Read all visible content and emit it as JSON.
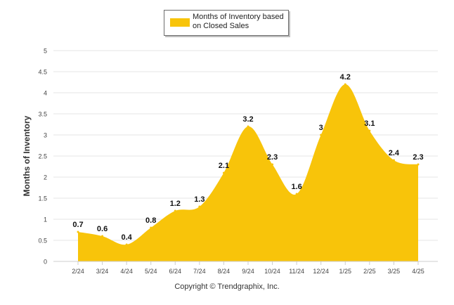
{
  "chart_data": {
    "type": "area",
    "categories": [
      "2/24",
      "3/24",
      "4/24",
      "5/24",
      "6/24",
      "7/24",
      "8/24",
      "9/24",
      "10/24",
      "11/24",
      "12/24",
      "1/25",
      "2/25",
      "3/25",
      "4/25"
    ],
    "series": [
      {
        "name": "Months of Inventory based on Closed Sales",
        "values": [
          0.7,
          0.6,
          0.4,
          0.8,
          1.2,
          1.3,
          2.1,
          3.2,
          2.3,
          1.6,
          3,
          4.2,
          3.1,
          2.4,
          2.3
        ],
        "data_labels": [
          "0.7",
          "0.6",
          "0.4",
          "0.8",
          "1.2",
          "1.3",
          "2.1",
          "3.2",
          "2.3",
          "1.6",
          "3",
          "4.2",
          "3.1",
          "2.4",
          "2.3"
        ],
        "color": "#f8c40a"
      }
    ],
    "ylabel": "Months of Inventory",
    "xlabel": "",
    "ylim": [
      0,
      5
    ],
    "yticks": [
      "0",
      "0.5",
      "1",
      "1.5",
      "2",
      "2.5",
      "3",
      "3.5",
      "4",
      "4.5",
      "5"
    ],
    "grid": true,
    "legend": "top-center"
  },
  "legend": {
    "label": "Months of Inventory based on Closed Sales"
  },
  "footer": {
    "copyright": "Copyright © Trendgraphix, Inc."
  },
  "colors": {
    "fill": "#f8c40a",
    "grid": "#e6e6e6",
    "axis": "#cccccc",
    "tick_text": "#444444",
    "label_text": "#111111"
  }
}
